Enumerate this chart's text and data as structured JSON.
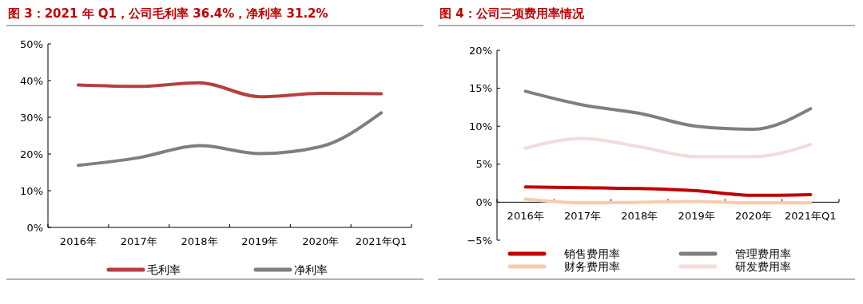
{
  "chart_data": [
    {
      "type": "line",
      "title": "图 3：2021 年 Q1，公司毛利率 36.4%，净利率 31.2%",
      "categories": [
        "2016年",
        "2017年",
        "2018年",
        "2019年",
        "2020年",
        "2021年Q1"
      ],
      "series": [
        {
          "name": "毛利率",
          "color": "#b5403f",
          "values": [
            38.8,
            38.4,
            39.4,
            35.6,
            36.5,
            36.4
          ]
        },
        {
          "name": "净利率",
          "color": "#7f7f7f",
          "values": [
            16.9,
            19.0,
            22.3,
            20.1,
            22.0,
            31.2
          ]
        }
      ],
      "ylim": [
        0,
        50
      ],
      "yticks": [
        {
          "value": 0,
          "label": "0%"
        },
        {
          "value": 10,
          "label": "10%"
        },
        {
          "value": 20,
          "label": "20%"
        },
        {
          "value": 30,
          "label": "30%"
        },
        {
          "value": 40,
          "label": "40%"
        },
        {
          "value": 50,
          "label": "50%"
        }
      ],
      "grid": false,
      "legend": "bottom",
      "marker": "none",
      "line_style": "solid"
    },
    {
      "type": "line",
      "title": "图 4：公司三项费用率情况",
      "categories": [
        "2016年",
        "2017年",
        "2018年",
        "2019年",
        "2020年",
        "2021年Q1"
      ],
      "series": [
        {
          "name": "销售费用率",
          "color": "#c00000",
          "values": [
            2.0,
            1.9,
            1.8,
            1.5,
            0.9,
            1.0
          ]
        },
        {
          "name": "管理费用率",
          "color": "#7f7f7f",
          "values": [
            14.6,
            12.8,
            11.7,
            10.0,
            9.6,
            12.3
          ]
        },
        {
          "name": "财务费用率",
          "color": "#f8cbad",
          "values": [
            0.4,
            -0.1,
            0.0,
            0.1,
            -0.1,
            -0.1
          ]
        },
        {
          "name": "研发费用率",
          "color": "#f2dcdb",
          "values": [
            7.1,
            8.4,
            7.3,
            6.0,
            6.0,
            7.6
          ]
        }
      ],
      "ylim": [
        -5,
        20
      ],
      "yticks": [
        {
          "value": -5,
          "label": "−5%"
        },
        {
          "value": 0,
          "label": "0%"
        },
        {
          "value": 5,
          "label": "5%"
        },
        {
          "value": 10,
          "label": "10%"
        },
        {
          "value": 15,
          "label": "15%"
        },
        {
          "value": 20,
          "label": "20%"
        }
      ],
      "grid": false,
      "legend": "bottom",
      "marker": "none",
      "line_style": "solid"
    }
  ]
}
